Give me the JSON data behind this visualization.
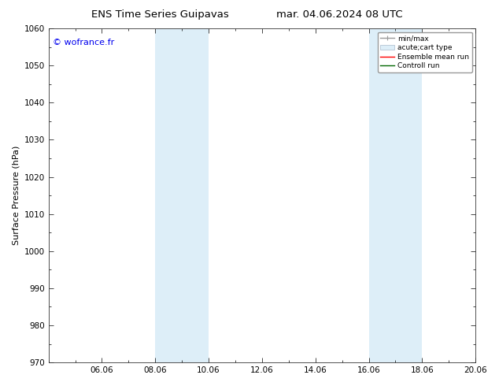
{
  "title_left": "ENS Time Series Guipavas",
  "title_right": "mar. 04.06.2024 08 UTC",
  "ylabel": "Surface Pressure (hPa)",
  "ylim": [
    970,
    1060
  ],
  "yticks": [
    970,
    980,
    990,
    1000,
    1010,
    1020,
    1030,
    1040,
    1050,
    1060
  ],
  "xlim": [
    4.0,
    20.0
  ],
  "xtick_labels": [
    "06.06",
    "08.06",
    "10.06",
    "12.06",
    "14.06",
    "16.06",
    "18.06",
    "20.06"
  ],
  "xtick_positions": [
    6.0,
    8.0,
    10.0,
    12.0,
    14.0,
    16.0,
    18.0,
    20.0
  ],
  "shaded_regions": [
    {
      "xmin": 8.0,
      "xmax": 10.0,
      "color": "#ddeef8"
    },
    {
      "xmin": 16.0,
      "xmax": 18.0,
      "color": "#ddeef8"
    }
  ],
  "watermark_text": "© wofrance.fr",
  "watermark_color": "#0000ee",
  "background_color": "#ffffff",
  "title_fontsize": 9.5,
  "axis_fontsize": 8,
  "tick_fontsize": 7.5,
  "watermark_fontsize": 8
}
